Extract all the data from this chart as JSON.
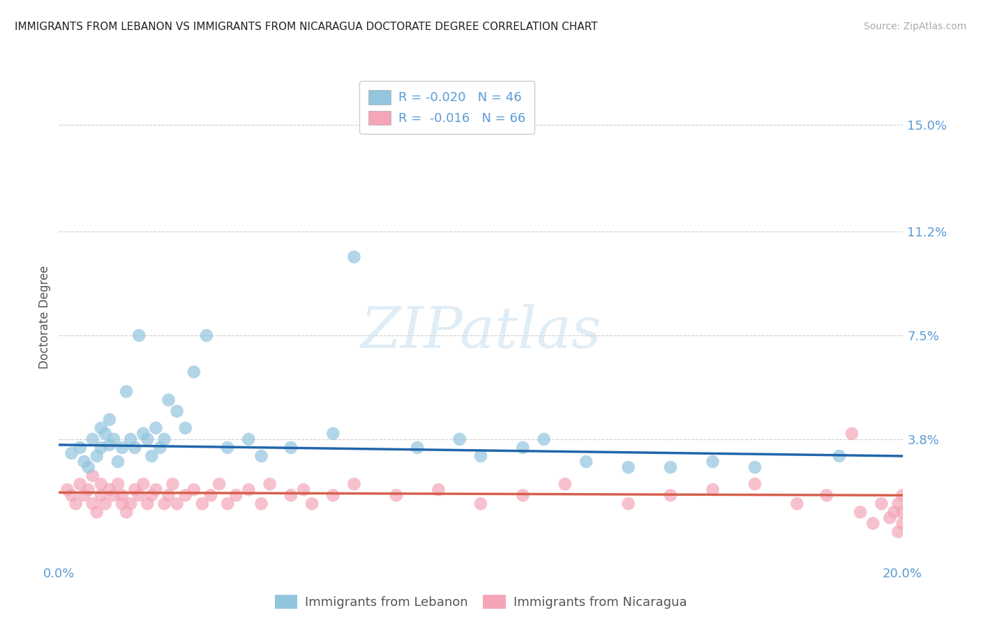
{
  "title": "IMMIGRANTS FROM LEBANON VS IMMIGRANTS FROM NICARAGUA DOCTORATE DEGREE CORRELATION CHART",
  "source": "Source: ZipAtlas.com",
  "ylabel": "Doctorate Degree",
  "ytick_labels": [
    "15.0%",
    "11.2%",
    "7.5%",
    "3.8%"
  ],
  "ytick_values": [
    0.15,
    0.112,
    0.075,
    0.038
  ],
  "xlim": [
    0.0,
    0.2
  ],
  "ylim": [
    -0.005,
    0.168
  ],
  "legend1_label": "R = -0.020   N = 46",
  "legend2_label": "R =  -0.016   N = 66",
  "legend_bottom_label1": "Immigrants from Lebanon",
  "legend_bottom_label2": "Immigrants from Nicaragua",
  "blue_color": "#92c5de",
  "pink_color": "#f4a6b8",
  "blue_line_color": "#2166ac",
  "pink_line_color": "#d6604d",
  "axis_color": "#5b9bd5",
  "source_color": "#aaaaaa",
  "title_color": "#222222",
  "ylabel_color": "#555555",
  "lebanon_x": [
    0.003,
    0.005,
    0.006,
    0.007,
    0.008,
    0.009,
    0.01,
    0.01,
    0.011,
    0.012,
    0.012,
    0.013,
    0.014,
    0.015,
    0.016,
    0.017,
    0.018,
    0.019,
    0.02,
    0.021,
    0.022,
    0.023,
    0.024,
    0.025,
    0.026,
    0.028,
    0.03,
    0.032,
    0.035,
    0.04,
    0.045,
    0.048,
    0.055,
    0.065,
    0.07,
    0.085,
    0.095,
    0.1,
    0.11,
    0.115,
    0.125,
    0.135,
    0.145,
    0.155,
    0.165,
    0.185
  ],
  "lebanon_y": [
    0.033,
    0.035,
    0.03,
    0.028,
    0.038,
    0.032,
    0.042,
    0.035,
    0.04,
    0.036,
    0.045,
    0.038,
    0.03,
    0.035,
    0.055,
    0.038,
    0.035,
    0.075,
    0.04,
    0.038,
    0.032,
    0.042,
    0.035,
    0.038,
    0.052,
    0.048,
    0.042,
    0.062,
    0.075,
    0.035,
    0.038,
    0.032,
    0.035,
    0.04,
    0.103,
    0.035,
    0.038,
    0.032,
    0.035,
    0.038,
    0.03,
    0.028,
    0.028,
    0.03,
    0.028,
    0.032
  ],
  "nicaragua_x": [
    0.002,
    0.003,
    0.004,
    0.005,
    0.006,
    0.007,
    0.008,
    0.008,
    0.009,
    0.01,
    0.01,
    0.011,
    0.012,
    0.013,
    0.014,
    0.015,
    0.015,
    0.016,
    0.017,
    0.018,
    0.019,
    0.02,
    0.021,
    0.022,
    0.023,
    0.025,
    0.026,
    0.027,
    0.028,
    0.03,
    0.032,
    0.034,
    0.036,
    0.038,
    0.04,
    0.042,
    0.045,
    0.048,
    0.05,
    0.055,
    0.058,
    0.06,
    0.065,
    0.07,
    0.08,
    0.09,
    0.1,
    0.11,
    0.12,
    0.135,
    0.145,
    0.155,
    0.165,
    0.175,
    0.182,
    0.188,
    0.19,
    0.193,
    0.195,
    0.197,
    0.198,
    0.199,
    0.199,
    0.2,
    0.2,
    0.2
  ],
  "nicaragua_y": [
    0.02,
    0.018,
    0.015,
    0.022,
    0.018,
    0.02,
    0.015,
    0.025,
    0.012,
    0.018,
    0.022,
    0.015,
    0.02,
    0.018,
    0.022,
    0.015,
    0.018,
    0.012,
    0.015,
    0.02,
    0.018,
    0.022,
    0.015,
    0.018,
    0.02,
    0.015,
    0.018,
    0.022,
    0.015,
    0.018,
    0.02,
    0.015,
    0.018,
    0.022,
    0.015,
    0.018,
    0.02,
    0.015,
    0.022,
    0.018,
    0.02,
    0.015,
    0.018,
    0.022,
    0.018,
    0.02,
    0.015,
    0.018,
    0.022,
    0.015,
    0.018,
    0.02,
    0.022,
    0.015,
    0.018,
    0.04,
    0.012,
    0.008,
    0.015,
    0.01,
    0.012,
    0.015,
    0.005,
    0.018,
    0.008,
    0.012
  ],
  "lebanon_trend_x": [
    0.0,
    0.2
  ],
  "lebanon_trend_y": [
    0.036,
    0.032
  ],
  "nicaragua_trend_x": [
    0.0,
    0.2
  ],
  "nicaragua_trend_y": [
    0.019,
    0.018
  ]
}
